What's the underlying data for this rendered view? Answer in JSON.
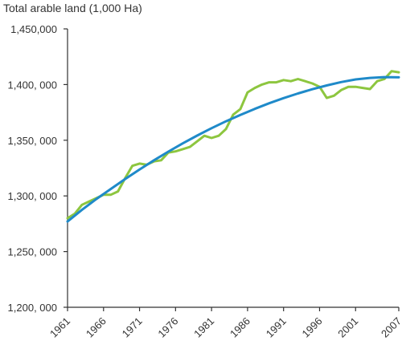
{
  "chart_data": {
    "type": "line",
    "title": "",
    "ylabel": "Total arable land (1,000 Ha)",
    "xlabel": "",
    "xlim": [
      1961,
      2007
    ],
    "ylim": [
      1200000,
      1450000
    ],
    "x_ticks": [
      1961,
      1966,
      1971,
      1976,
      1981,
      1986,
      1991,
      1996,
      2001,
      2007
    ],
    "y_ticks": [
      1200000,
      1250000,
      1300000,
      1350000,
      1400000,
      1450000
    ],
    "y_tick_labels": [
      "1,200, 000",
      "1,250, 000",
      "1,300, 000",
      "1,350, 000",
      "1,400, 000",
      "1,450,000"
    ],
    "grid": false,
    "legend": "none",
    "series": [
      {
        "color": "#8dc63f",
        "x": [
          1961,
          1962,
          1963,
          1964,
          1965,
          1966,
          1967,
          1968,
          1969,
          1970,
          1971,
          1972,
          1973,
          1974,
          1975,
          1976,
          1977,
          1978,
          1979,
          1980,
          1981,
          1982,
          1983,
          1984,
          1985,
          1986,
          1987,
          1988,
          1989,
          1990,
          1991,
          1992,
          1993,
          1994,
          1995,
          1996,
          1997,
          1998,
          1999,
          2000,
          2001,
          2002,
          2003,
          2004,
          2005,
          2006,
          2007
        ],
        "values": [
          1280000,
          1284000,
          1292000,
          1295000,
          1298000,
          1301000,
          1301000,
          1304000,
          1316000,
          1327000,
          1329000,
          1328000,
          1331000,
          1332000,
          1339000,
          1340000,
          1342000,
          1344000,
          1349000,
          1354000,
          1352000,
          1354000,
          1360000,
          1373000,
          1378000,
          1393000,
          1397000,
          1400000,
          1402000,
          1402000,
          1404000,
          1403000,
          1405000,
          1403000,
          1401000,
          1398000,
          1388000,
          1390000,
          1395000,
          1398000,
          1398000,
          1397000,
          1396000,
          1403000,
          1405000,
          1412000,
          1411000
        ]
      },
      {
        "color": "#1f8ac9",
        "x": [
          1961,
          1963,
          1965,
          1967,
          1969,
          1971,
          1973,
          1975,
          1977,
          1979,
          1981,
          1983,
          1985,
          1987,
          1989,
          1991,
          1993,
          1995,
          1997,
          1999,
          2001,
          2003,
          2005,
          2007
        ],
        "values": [
          1277000,
          1287500,
          1297200,
          1306200,
          1315200,
          1323800,
          1332000,
          1339800,
          1347200,
          1354200,
          1360800,
          1367000,
          1372800,
          1378200,
          1383200,
          1387800,
          1392000,
          1395800,
          1399200,
          1402200,
          1404600,
          1406000,
          1406700,
          1406500
        ]
      }
    ]
  }
}
